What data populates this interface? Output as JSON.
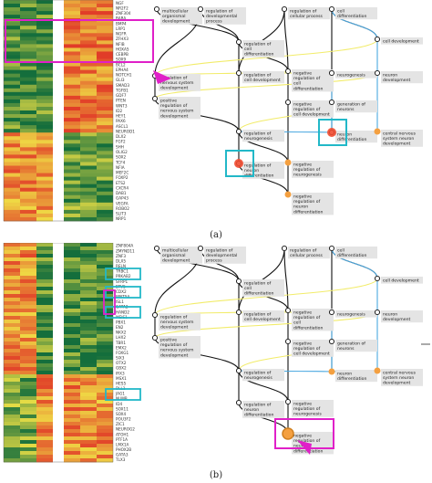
{
  "panel_a": {
    "caption": "(a)",
    "gene_labels": [
      "NGF",
      "NR2F2",
      "ZNF304",
      "RARA",
      "BMP4",
      "LRP1",
      "NGFR",
      "ZFHX3",
      "NFIB",
      "HOXA5",
      "CEBPB",
      "SOX9",
      "BCL2",
      "EPHA4",
      "NOTCH1",
      "GLI3",
      "SMAD3",
      "TGFB1",
      "GDF7",
      "PTEN",
      "WNT3",
      "ID2",
      "HEY1",
      "PAX6",
      "ASCL1",
      "NEUROD1",
      "DLX2",
      "FGF2",
      "SHH",
      "OLIG2",
      "SOX2",
      "TCF4",
      "NFIA",
      "MEF2C",
      "FOXP2",
      "ETS2",
      "CXCR4",
      "DAB1",
      "GAP43",
      "VEGFA",
      "ROBO2",
      "SLIT3",
      "NRP1"
    ],
    "nodes": [
      {
        "id": "a1",
        "lines": [
          "multicellular",
          "organismal",
          "development"
        ]
      },
      {
        "id": "a2",
        "lines": [
          "regulation of",
          "developmental",
          "process"
        ]
      },
      {
        "id": "a3",
        "lines": [
          "regulation of",
          "cellular process"
        ]
      },
      {
        "id": "a4",
        "lines": [
          "cell",
          "differentiation"
        ]
      },
      {
        "id": "a5",
        "lines": [
          "regulation of",
          "cell",
          "differentiation"
        ]
      },
      {
        "id": "a6",
        "lines": [
          "cell development"
        ]
      },
      {
        "id": "a7",
        "lines": [
          "regulation of",
          "nervous system",
          "development"
        ]
      },
      {
        "id": "a8",
        "lines": [
          "regulation of",
          "cell development"
        ]
      },
      {
        "id": "a9",
        "lines": [
          "negative",
          "regulation of",
          "cell",
          "differentiation"
        ]
      },
      {
        "id": "a10",
        "lines": [
          "neurogenesis"
        ]
      },
      {
        "id": "a11",
        "lines": [
          "neuron",
          "development"
        ]
      },
      {
        "id": "a12",
        "lines": [
          "positive",
          "regulation of",
          "nervous system",
          "development"
        ]
      },
      {
        "id": "a13",
        "lines": [
          "negative",
          "regulation of",
          "cell development"
        ]
      },
      {
        "id": "a14",
        "lines": [
          "generation of",
          "neurons"
        ]
      },
      {
        "id": "a15",
        "lines": [
          "regulation of",
          "neurogenesis"
        ]
      },
      {
        "id": "a16",
        "lines": [
          "neuron",
          "differentiation"
        ]
      },
      {
        "id": "a17",
        "lines": [
          "central nervous",
          "system neuron",
          "development"
        ]
      },
      {
        "id": "a18",
        "lines": [
          "regulation of",
          "neuron",
          "differentiation"
        ]
      },
      {
        "id": "a19",
        "lines": [
          "negative",
          "regulation of",
          "neurogenesis"
        ]
      },
      {
        "id": "a20",
        "lines": [
          "negative",
          "regulation of",
          "neuron",
          "differentiation"
        ]
      }
    ]
  },
  "panel_b": {
    "caption": "(b)",
    "gene_labels": [
      "ZNF804A",
      "ZMYND11",
      "ZNF3",
      "DLX5",
      "RELN",
      "TRBC1",
      "PRKAB2",
      "SFRP1",
      "ETV5",
      "CDX2",
      "WNT5A",
      "ISL1",
      "GATA2",
      "HAND2",
      "MEIS1",
      "PBX1",
      "EN2",
      "NKX2",
      "LHX2",
      "TBR1",
      "EMX2",
      "FOXG1",
      "SIX3",
      "OTX2",
      "GBX2",
      "IRX3",
      "MSX1",
      "HES5",
      "DLL1",
      "JAG1",
      "NUMB",
      "ID4",
      "SOX11",
      "SOX4",
      "POU3F2",
      "ZIC1",
      "NEUROG2",
      "ATOH1",
      "PTF1A",
      "LMX1A",
      "PHOX2B",
      "GATA3",
      "TLX3"
    ],
    "nodes": [
      {
        "id": "b1",
        "lines": [
          "multicellular",
          "organismal",
          "development"
        ]
      },
      {
        "id": "b2",
        "lines": [
          "regulation of",
          "developmental",
          "process"
        ]
      },
      {
        "id": "b3",
        "lines": [
          "regulation of",
          "cellular process"
        ]
      },
      {
        "id": "b4",
        "lines": [
          "cell",
          "differentiation"
        ]
      },
      {
        "id": "b5",
        "lines": [
          "regulation of",
          "cell",
          "differentiation"
        ]
      },
      {
        "id": "b6",
        "lines": [
          "cell development"
        ]
      },
      {
        "id": "b7",
        "lines": [
          "regulation of",
          "nervous system",
          "development"
        ]
      },
      {
        "id": "b8",
        "lines": [
          "regulation of",
          "cell development"
        ]
      },
      {
        "id": "b9",
        "lines": [
          "negative",
          "regulation of",
          "cell",
          "differentiation"
        ]
      },
      {
        "id": "b10",
        "lines": [
          "neurogenesis"
        ]
      },
      {
        "id": "b11",
        "lines": [
          "neuron",
          "development"
        ]
      },
      {
        "id": "b12",
        "lines": [
          "positive",
          "regulation of",
          "nervous system",
          "development"
        ]
      },
      {
        "id": "b13",
        "lines": [
          "negative",
          "regulation of",
          "cell development"
        ]
      },
      {
        "id": "b14",
        "lines": [
          "generation of",
          "neurons"
        ]
      },
      {
        "id": "b15",
        "lines": [
          "regulation of",
          "neurogenesis"
        ]
      },
      {
        "id": "b16",
        "lines": [
          "neuron",
          "differentiation"
        ]
      },
      {
        "id": "b17",
        "lines": [
          "central nervous",
          "system neuron",
          "development"
        ]
      },
      {
        "id": "b18",
        "lines": [
          "regulation of",
          "neuron",
          "differentiation"
        ]
      },
      {
        "id": "b19",
        "lines": [
          "negative",
          "regulation of",
          "neurogenesis"
        ]
      },
      {
        "id": "b20",
        "lines": [
          "negative",
          "regulation of",
          "neuron",
          "differentiation"
        ]
      }
    ]
  },
  "colors": {
    "node_label_bg": "#e4e4e4",
    "black_edge": "#111111",
    "yellow_edge": "#f2ec6a",
    "blue_edge": "#4aa8e0",
    "magenta_highlight": "#e020c8",
    "cyan_highlight": "#22b8c8",
    "term_dot": "#f4a040",
    "hot_dot": "#f04a30"
  }
}
